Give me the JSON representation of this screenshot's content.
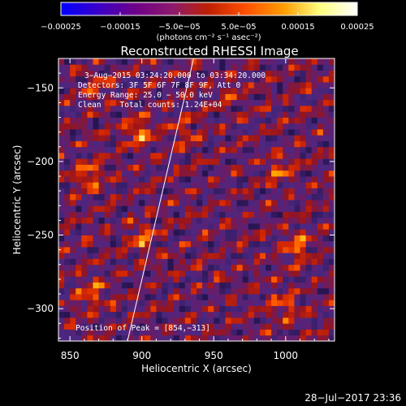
{
  "chart_data": {
    "type": "heatmap",
    "title": "Reconstructed RHESSI Image",
    "xlabel": "Heliocentric X (arcsec)",
    "ylabel": "Heliocentric Y (arcsec)",
    "xlim": [
      842,
      1034
    ],
    "ylim": [
      -322,
      -130
    ],
    "x_ticks": [
      850,
      900,
      950,
      1000
    ],
    "y_ticks": [
      -300,
      -250,
      -200,
      -150
    ],
    "x_tick_labels": [
      "850",
      "900",
      "950",
      "1000"
    ],
    "y_tick_labels": [
      "−300",
      "−250",
      "−200",
      "−150"
    ],
    "colorbar": {
      "range": [
        -0.00025,
        0.00025
      ],
      "colormap": [
        "#0000ff",
        "#3a00c8",
        "#6e0088",
        "#8c1a6e",
        "#c02000",
        "#ff5000",
        "#ff9c00",
        "#ffff80",
        "#ffffff"
      ],
      "tick_values": [
        -0.00025,
        -0.00015,
        -5e-05,
        5e-05,
        0.00015,
        0.00025
      ],
      "tick_labels": [
        "−0.00025",
        "−0.00015",
        "−5.0e−05",
        "5.0e−05",
        "0.00015",
        "0.00025"
      ],
      "unit_label": "(photons cm⁻² s⁻¹ asec⁻²)"
    },
    "annotations": [
      "3−Aug−2015 03:24:20.000 to 03:34:20.000",
      "Detectors: 3F 5F 6F 7F 8F 9F, Att 0",
      "Energy Range: 25.0 − 50.0 keV",
      "Clean    Total counts: 1.24E+04"
    ],
    "peak_label": "Position of Peak = [854,−313]",
    "peak": [
      854,
      -313
    ],
    "limb_line": [
      [
        890,
        -322
      ],
      [
        936,
        -130
      ]
    ],
    "bright_sources": [
      {
        "x": 898,
        "y": -180,
        "amp": 1.0
      },
      {
        "x": 862,
        "y": -210,
        "amp": 0.9
      },
      {
        "x": 900,
        "y": -252,
        "amp": 0.85
      },
      {
        "x": 995,
        "y": -205,
        "amp": 0.75
      },
      {
        "x": 1008,
        "y": -258,
        "amp": 0.85
      },
      {
        "x": 865,
        "y": -290,
        "amp": 0.8
      },
      {
        "x": 930,
        "y": -180,
        "amp": 0.6
      },
      {
        "x": 1000,
        "y": -298,
        "amp": 0.7
      },
      {
        "x": 960,
        "y": -155,
        "amp": 0.5
      },
      {
        "x": 870,
        "y": -150,
        "amp": 0.55
      }
    ]
  },
  "footer": {
    "timestamp": "28−Jul−2017 23:36"
  }
}
